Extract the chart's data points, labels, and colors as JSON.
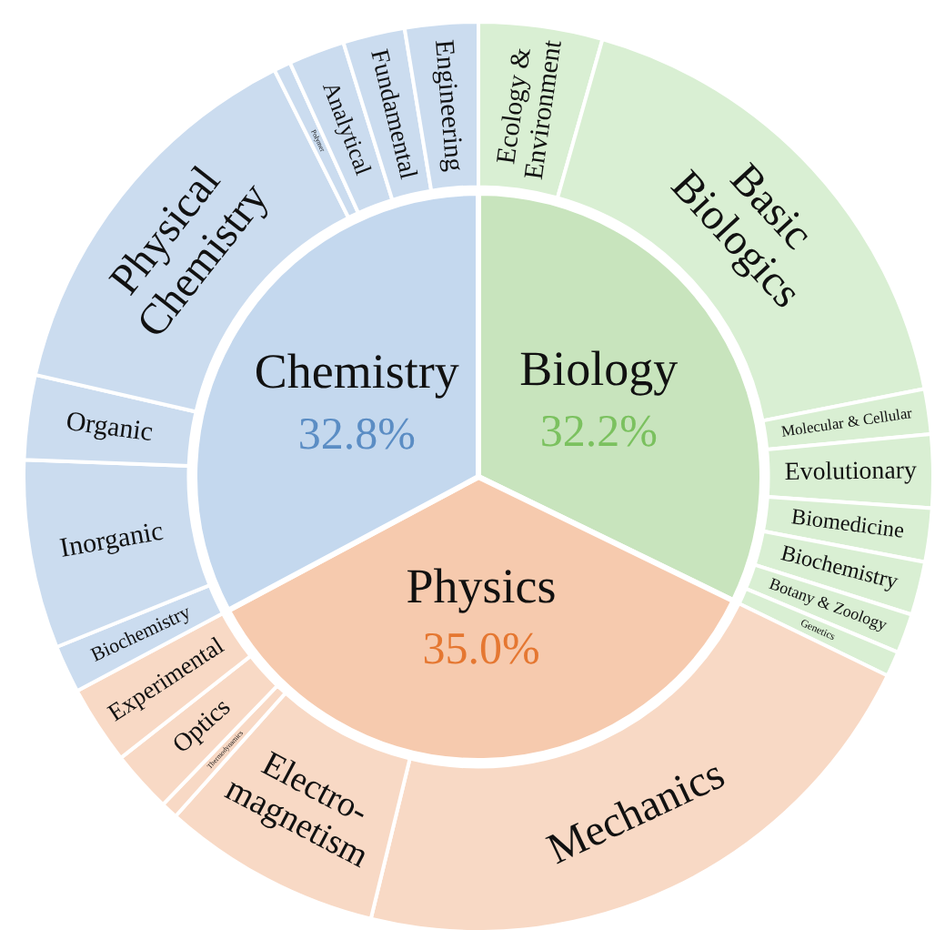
{
  "chart_data": [
    {
      "type": "donut",
      "categories": [
        "Ecology & Environment",
        "Basic Biologics",
        "Molecular & Cellular",
        "Evolutionary",
        "Biomedicine",
        "Biochemistry",
        "Botany & Zoology",
        "Genetics",
        "Mechanics",
        "Electro-magnetism",
        "Thermodynamics",
        "Optics",
        "Experimental",
        "Biochemistry",
        "Inorganic",
        "Organic",
        "Physical Chemistry",
        "Polymer",
        "Analytical",
        "Fundamental",
        "Engineering"
      ],
      "values": [
        4.4,
        17.5,
        1.6,
        2.6,
        1.9,
        1.9,
        1.4,
        0.9,
        21.6,
        7.8,
        0.6,
        2.2,
        2.8,
        1.7,
        6.7,
        3.0,
        14.0,
        0.6,
        2.0,
        2.2,
        2.6
      ],
      "colors": [
        "#d9efd3",
        "#d9efd3",
        "#d9efd3",
        "#d9efd3",
        "#d9efd3",
        "#d9efd3",
        "#d9efd3",
        "#d9efd3",
        "#f8d9c5",
        "#f8d9c5",
        "#f8d9c5",
        "#f8d9c5",
        "#f8d9c5",
        "#cbdcef",
        "#cbdcef",
        "#cbdcef",
        "#cbdcef",
        "#cbdcef",
        "#cbdcef",
        "#cbdcef",
        "#cbdcef"
      ]
    },
    {
      "type": "pie",
      "categories": [
        "Biology",
        "Physics",
        "Chemistry"
      ],
      "values": [
        32.2,
        35.0,
        32.8
      ],
      "value_labels": [
        "32.2%",
        "35.0%",
        "32.8%"
      ],
      "colors": [
        "#c8e4bd",
        "#f6caae",
        "#c4d8ee"
      ]
    }
  ]
}
